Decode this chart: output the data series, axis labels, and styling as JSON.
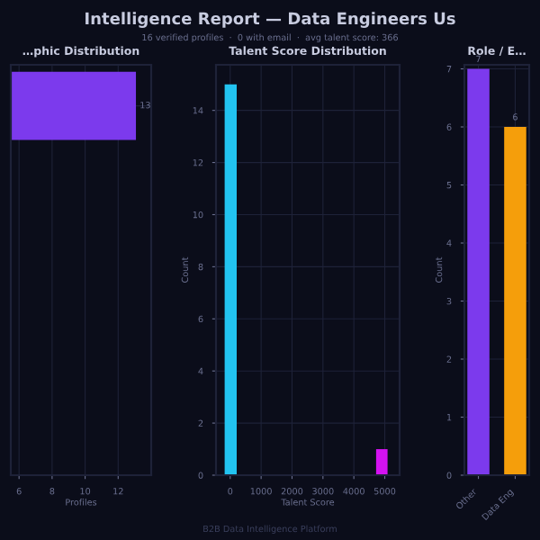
{
  "chart_data": [
    {
      "type": "other",
      "title": "Intelligence Report — Data Engineers Us",
      "subtitle": "16 verified profiles  ·  0 with email  ·  avg talent score: 366",
      "annotations": [
        "B2B Data Intelligence Platform"
      ]
    },
    {
      "type": "bar",
      "title": "…phic Distribution",
      "orientation": "horizontal",
      "categories": [
        null
      ],
      "values": [
        13
      ],
      "color": "#7c3aed",
      "xlabel": "Profiles",
      "xlim": [
        5.5,
        14
      ],
      "xticks": [
        6,
        8,
        10,
        12
      ],
      "data_labels": true,
      "grid": true
    },
    {
      "type": "histogram",
      "title": "Talent Score Distribution",
      "bins": [
        -180,
        210,
        4720,
        5090
      ],
      "values": [
        15,
        0,
        1
      ],
      "colors": [
        "#22c3f0",
        "#8242f0",
        "#d412f0"
      ],
      "xlabel": "Talent Score",
      "ylabel": "Count",
      "xlim": [
        -460,
        5480
      ],
      "xticks": [
        0,
        1000,
        2000,
        3000,
        4000,
        5000
      ],
      "ylim": [
        0,
        15.75
      ],
      "yticks": [
        0,
        2,
        4,
        6,
        8,
        10,
        12,
        14
      ],
      "grid": true
    },
    {
      "type": "bar",
      "title": "Role / E…",
      "categories": [
        "Other",
        "Data Eng"
      ],
      "values": [
        7,
        6
      ],
      "colors": [
        "#7c3aed",
        "#f59e0b"
      ],
      "ylabel": "Count",
      "ylim": [
        0,
        7.07
      ],
      "yticks": [
        0,
        1,
        2,
        3,
        4,
        5,
        6,
        7
      ],
      "data_labels": true,
      "grid": true
    }
  ]
}
